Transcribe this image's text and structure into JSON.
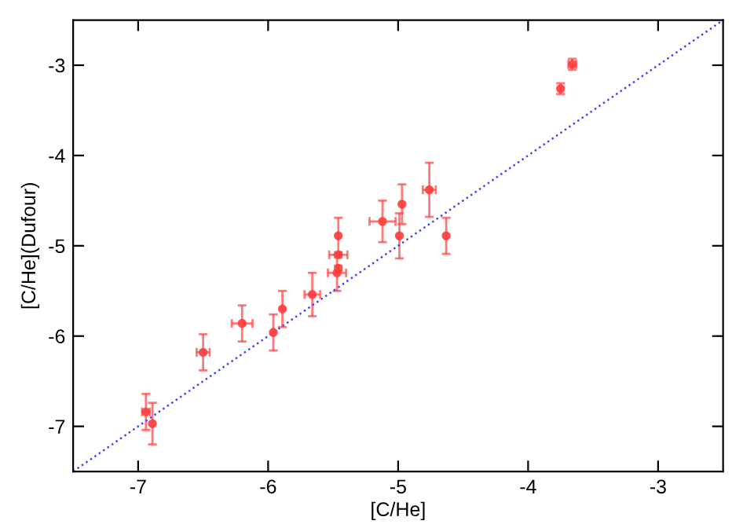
{
  "chart_data": {
    "type": "scatter",
    "xlabel": "[C/He]",
    "ylabel": "[C/He](Dufour)",
    "xlim": [
      -7.5,
      -2.5
    ],
    "ylim": [
      -7.5,
      -2.5
    ],
    "xticks": [
      -7,
      -6,
      -5,
      -4,
      -3
    ],
    "yticks": [
      -7,
      -6,
      -5,
      -4,
      -3
    ],
    "grid": false,
    "legend": false,
    "marker": "circle",
    "series": [
      {
        "color": "#ff4040",
        "x": [
          -6.94,
          -6.89,
          -6.5,
          -6.2,
          -5.96,
          -5.89,
          -5.66,
          -5.46,
          -5.46,
          -5.46,
          -5.47,
          -5.12,
          -4.99,
          -4.97,
          -4.76,
          -4.63,
          -3.75,
          -3.66
        ],
        "values": [
          -6.84,
          -6.97,
          -6.18,
          -5.86,
          -5.96,
          -5.7,
          -5.54,
          -4.89,
          -5.1,
          -5.25,
          -5.3,
          -4.73,
          -4.89,
          -4.54,
          -4.38,
          -4.89,
          -3.26,
          -2.99
        ],
        "errors": [
          0.2,
          0.23,
          0.2,
          0.2,
          0.2,
          0.2,
          0.24,
          0.2,
          0.03,
          0.03,
          0.2,
          0.23,
          0.25,
          0.22,
          0.3,
          0.2,
          0.06,
          0.06
        ],
        "xerrors": [
          0.03,
          null,
          0.05,
          0.08,
          null,
          null,
          0.06,
          null,
          0.07,
          null,
          0.07,
          0.1,
          null,
          null,
          0.05,
          null,
          null,
          0.03
        ]
      },
      {
        "type": "line",
        "color": "#4444ff",
        "line_style": "dotted",
        "marker": "none",
        "x": [
          -7.5,
          -2.5
        ],
        "values": [
          -7.5,
          -2.5
        ]
      }
    ]
  }
}
